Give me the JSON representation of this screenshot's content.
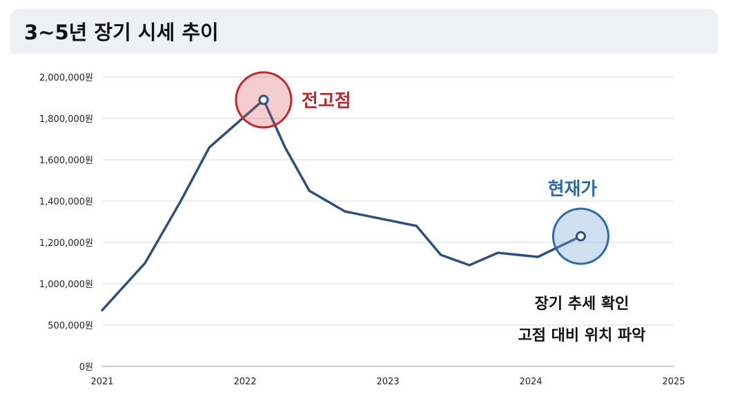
{
  "chart_data": {
    "type": "line",
    "title": "3~5년 장기 시세 추이",
    "y_ticks": [
      "0원",
      "500,000원",
      "1,000,000원",
      "1,200,000원",
      "1,400,000원",
      "1,600,000원",
      "1,800,000원",
      "2,000,000원"
    ],
    "x_ticks": [
      "2021",
      "2022",
      "2023",
      "2024",
      "2025"
    ],
    "ylim": [
      0,
      2000000
    ],
    "grid": true,
    "series": [
      {
        "color": "#2f4f7f",
        "points": [
          [
            2021.0,
            680000
          ],
          [
            2021.3,
            1100000
          ],
          [
            2021.55,
            1400000
          ],
          [
            2021.75,
            1660000
          ],
          [
            2022.13,
            1890000
          ],
          [
            2022.28,
            1660000
          ],
          [
            2022.45,
            1450000
          ],
          [
            2022.7,
            1350000
          ],
          [
            2023.2,
            1280000
          ],
          [
            2023.37,
            1140000
          ],
          [
            2023.57,
            1090000
          ],
          [
            2023.77,
            1150000
          ],
          [
            2024.05,
            1130000
          ],
          [
            2024.35,
            1230000
          ]
        ]
      }
    ],
    "annotations": {
      "peak": {
        "label": "전고점",
        "x": 2022.13,
        "y": 1890000,
        "color": "#c0282d"
      },
      "current": {
        "label": "현재가",
        "x": 2024.35,
        "y": 1230000,
        "color": "#2e6aa7"
      }
    },
    "notes": [
      "장기 추세 확인",
      "고점 대비 위치 파악"
    ]
  }
}
